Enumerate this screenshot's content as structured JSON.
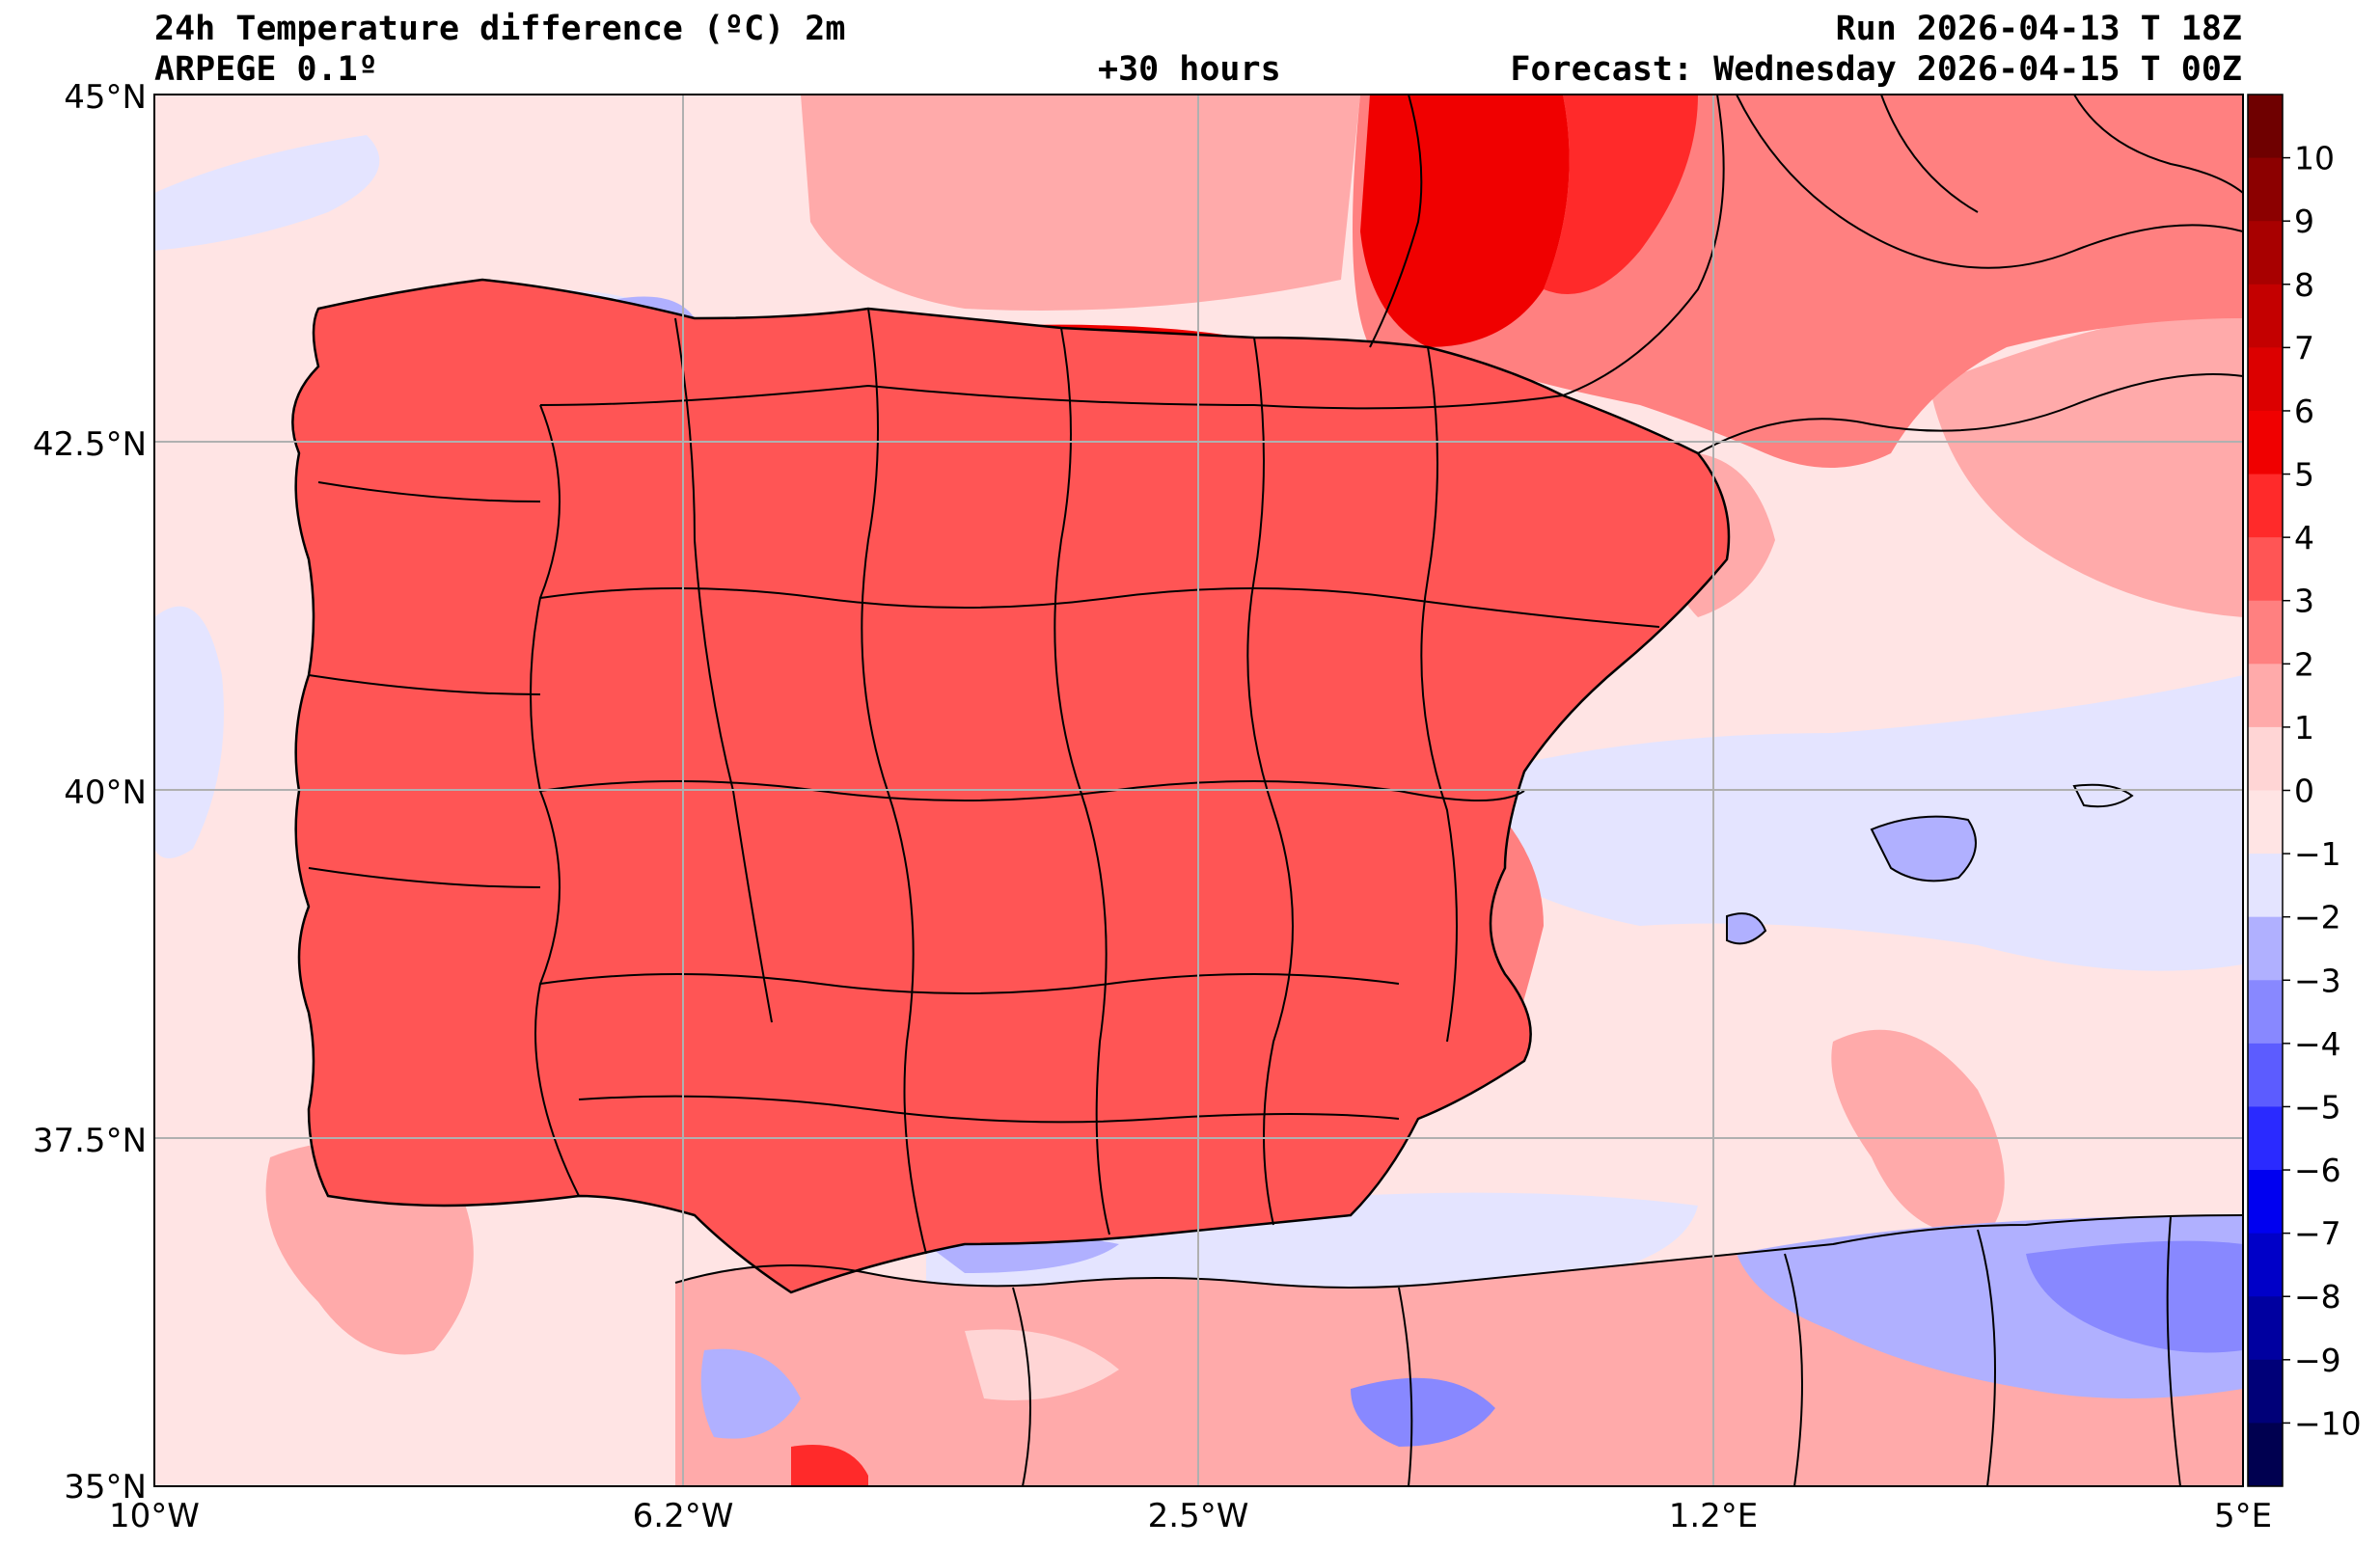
{
  "header": {
    "title": "24h Temperature difference (ºC) 2m",
    "model": "ARPEGE 0.1º",
    "lead": "+30 hours",
    "run": "Run 2026-04-13 T 18Z",
    "forecast": "Forecast: Wednesday 2026-04-15 T 00Z"
  },
  "axes": {
    "lat_labels": [
      "45°N",
      "42.5°N",
      "40°N",
      "37.5°N",
      "35°N"
    ],
    "lon_labels": [
      "10°W",
      "6.2°W",
      "2.5°W",
      "1.2°E",
      "5°E"
    ],
    "lat_range": [
      35,
      45
    ],
    "lon_range": [
      -10,
      5
    ],
    "grid": true
  },
  "colorbar": {
    "labels": [
      "10",
      "9",
      "8",
      "7",
      "6",
      "5",
      "4",
      "3",
      "2",
      "1",
      "0",
      "−1",
      "−2",
      "−3",
      "−4",
      "−5",
      "−6",
      "−7",
      "−8",
      "−9",
      "−10"
    ],
    "levels": [
      10,
      9,
      8,
      7,
      6,
      5,
      4,
      3,
      2,
      1,
      0,
      -1,
      -2,
      -3,
      -4,
      -5,
      -6,
      -7,
      -8,
      -9,
      -10
    ],
    "colors_top_to_bottom": [
      "#6f0000",
      "#8c0000",
      "#a80000",
      "#c40000",
      "#dc0000",
      "#f00000",
      "#ff2a2a",
      "#ff5555",
      "#ff8080",
      "#ffaaaa",
      "#ffd5d5",
      "#ffe4e4",
      "#e4e4ff",
      "#b0b0ff",
      "#8888ff",
      "#5c5cff",
      "#2a2aff",
      "#0000f0",
      "#0000c8",
      "#0000a0",
      "#000078",
      "#000050"
    ]
  },
  "colors": {
    "land_base": "#ff6666",
    "sea_base": "#ffe4e4",
    "cool_sea": "#e4e4ff",
    "grid": "#b0b0b0",
    "border": "#000000"
  }
}
